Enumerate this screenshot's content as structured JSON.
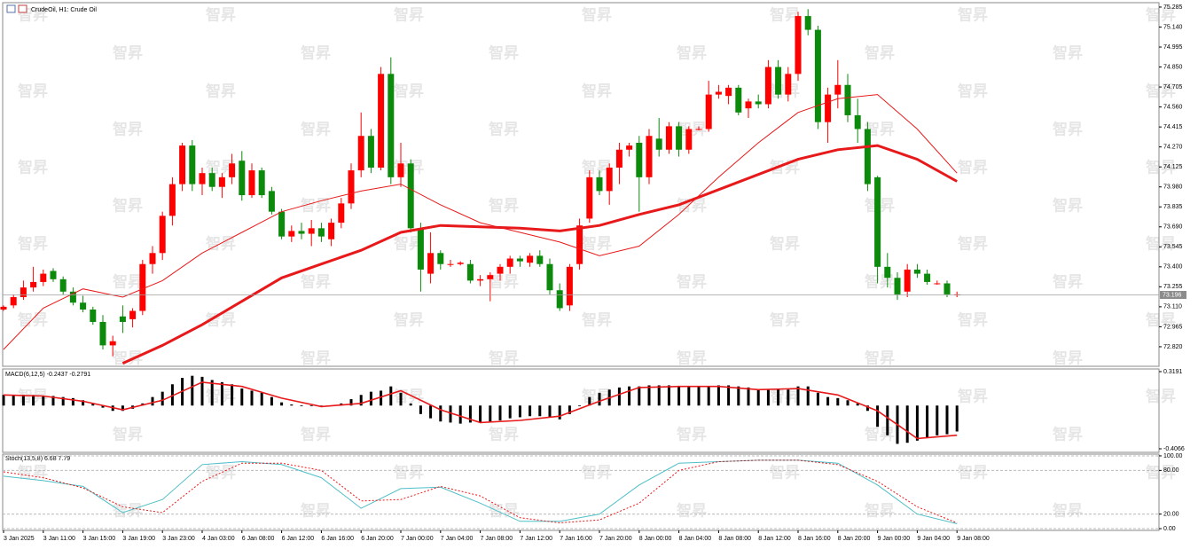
{
  "watermark": "智昇",
  "chart_data": [
    {
      "type": "candlestick",
      "title": "CrudeOil, H1: Crude Oil",
      "up_color": "#ff0000",
      "down_color": "#0b8a0b",
      "xlim": [
        0,
        116
      ],
      "ylim": [
        72.678,
        75.317
      ],
      "yticks": [
        75.285,
        {
          "value": 75.14,
          "label": "75.140"
        },
        74.995,
        {
          "value": 74.85,
          "label": "74.850"
        },
        74.705,
        {
          "value": 74.56,
          "label": "74.560"
        },
        74.415,
        {
          "value": 74.27,
          "label": "74.270"
        },
        74.125,
        {
          "value": 73.98,
          "label": "73.980"
        },
        73.835,
        {
          "value": 73.69,
          "label": "73.690"
        },
        73.545,
        {
          "value": 73.4,
          "label": "73.400"
        },
        73.255,
        {
          "value": 73.11,
          "label": "73.110"
        },
        72.965,
        {
          "value": 72.82,
          "label": "72.820"
        }
      ],
      "last_price": 73.196,
      "candles": [
        [
          73.09,
          73.12,
          73.08,
          73.11
        ],
        [
          73.12,
          73.2,
          73.1,
          73.18
        ],
        [
          73.18,
          73.3,
          73.16,
          73.25
        ],
        [
          73.25,
          73.4,
          73.22,
          73.29
        ],
        [
          73.29,
          73.38,
          73.26,
          73.35
        ],
        [
          73.37,
          73.39,
          73.29,
          73.31
        ],
        [
          73.31,
          73.33,
          73.2,
          73.22
        ],
        [
          73.22,
          73.25,
          73.12,
          73.14
        ],
        [
          73.14,
          73.19,
          73.07,
          73.09
        ],
        [
          73.09,
          73.11,
          72.98,
          73.0
        ],
        [
          73.0,
          73.05,
          72.8,
          72.83
        ],
        [
          72.83,
          72.9,
          72.75,
          72.86
        ],
        [
          73.04,
          73.12,
          72.92,
          73.0
        ],
        [
          73.02,
          73.1,
          72.96,
          73.08
        ],
        [
          73.08,
          73.45,
          73.05,
          73.42
        ],
        [
          73.42,
          73.55,
          73.35,
          73.5
        ],
        [
          73.5,
          73.8,
          73.45,
          73.77
        ],
        [
          73.77,
          74.05,
          73.7,
          74.0
        ],
        [
          74.0,
          74.3,
          73.95,
          74.28
        ],
        [
          74.28,
          74.32,
          73.95,
          74.0
        ],
        [
          74.0,
          74.12,
          73.92,
          74.08
        ],
        [
          74.08,
          74.12,
          73.95,
          73.98
        ],
        [
          73.98,
          74.08,
          73.9,
          74.05
        ],
        [
          74.05,
          74.22,
          74.0,
          74.15
        ],
        [
          74.17,
          74.24,
          73.88,
          73.92
        ],
        [
          73.92,
          74.15,
          73.9,
          74.1
        ],
        [
          74.1,
          74.12,
          73.9,
          73.92
        ],
        [
          73.95,
          73.98,
          73.78,
          73.8
        ],
        [
          73.8,
          73.82,
          73.6,
          73.62
        ],
        [
          73.62,
          73.7,
          73.58,
          73.66
        ],
        [
          73.66,
          73.72,
          73.6,
          73.64
        ],
        [
          73.64,
          73.74,
          73.55,
          73.68
        ],
        [
          73.68,
          73.72,
          73.58,
          73.62
        ],
        [
          73.6,
          73.75,
          73.55,
          73.72
        ],
        [
          73.72,
          73.9,
          73.68,
          73.86
        ],
        [
          73.86,
          74.15,
          73.82,
          74.1
        ],
        [
          74.1,
          74.52,
          74.05,
          74.35
        ],
        [
          74.35,
          74.4,
          74.08,
          74.12
        ],
        [
          74.12,
          74.85,
          74.1,
          74.8
        ],
        [
          74.8,
          74.92,
          74.0,
          74.05
        ],
        [
          74.05,
          74.3,
          73.98,
          74.15
        ],
        [
          74.15,
          74.18,
          73.65,
          73.68
        ],
        [
          73.68,
          73.72,
          73.22,
          73.38
        ],
        [
          73.35,
          73.65,
          73.28,
          73.5
        ],
        [
          73.5,
          73.52,
          73.38,
          73.42
        ],
        [
          73.42,
          73.45,
          73.4,
          73.42
        ],
        [
          73.42,
          73.44,
          73.41,
          73.43
        ],
        [
          73.42,
          73.45,
          73.28,
          73.3
        ],
        [
          73.3,
          73.34,
          73.26,
          73.31
        ],
        [
          73.31,
          73.36,
          73.15,
          73.34
        ],
        [
          73.35,
          73.42,
          73.3,
          73.4
        ],
        [
          73.4,
          73.48,
          73.35,
          73.46
        ],
        [
          73.46,
          73.48,
          73.4,
          73.44
        ],
        [
          73.43,
          73.5,
          73.4,
          73.48
        ],
        [
          73.48,
          73.52,
          73.4,
          73.42
        ],
        [
          73.42,
          73.46,
          73.2,
          73.23
        ],
        [
          73.23,
          73.28,
          73.08,
          73.1
        ],
        [
          73.12,
          73.42,
          73.08,
          73.4
        ],
        [
          73.42,
          73.75,
          73.38,
          73.7
        ],
        [
          73.75,
          74.1,
          73.72,
          74.05
        ],
        [
          74.05,
          74.1,
          73.92,
          73.95
        ],
        [
          73.95,
          74.15,
          73.85,
          74.12
        ],
        [
          74.12,
          74.3,
          74.0,
          74.25
        ],
        [
          74.25,
          74.3,
          74.2,
          74.28
        ],
        [
          74.3,
          74.35,
          73.8,
          74.05
        ],
        [
          74.05,
          74.4,
          74.0,
          74.35
        ],
        [
          74.33,
          74.48,
          74.2,
          74.25
        ],
        [
          74.25,
          74.45,
          74.22,
          74.42
        ],
        [
          74.42,
          74.45,
          74.2,
          74.25
        ],
        [
          74.25,
          74.42,
          74.22,
          74.4
        ],
        [
          74.4,
          74.42,
          74.39,
          74.4
        ],
        [
          74.4,
          74.75,
          74.38,
          74.65
        ],
        [
          74.65,
          74.72,
          74.62,
          74.67
        ],
        [
          74.64,
          74.72,
          74.58,
          74.7
        ],
        [
          74.7,
          74.72,
          74.5,
          74.52
        ],
        [
          74.55,
          74.62,
          74.48,
          74.6
        ],
        [
          74.6,
          74.65,
          74.55,
          74.58
        ],
        [
          74.58,
          74.9,
          74.55,
          74.85
        ],
        [
          74.85,
          74.9,
          74.62,
          74.65
        ],
        [
          74.65,
          74.85,
          74.6,
          74.8
        ],
        [
          74.8,
          75.25,
          74.75,
          75.22
        ],
        [
          75.22,
          75.27,
          75.08,
          75.12
        ],
        [
          75.12,
          75.15,
          74.4,
          74.45
        ],
        [
          74.45,
          74.7,
          74.3,
          74.65
        ],
        [
          74.65,
          74.9,
          74.55,
          74.72
        ],
        [
          74.72,
          74.8,
          74.45,
          74.5
        ],
        [
          74.5,
          74.62,
          74.3,
          74.4
        ],
        [
          74.4,
          74.45,
          73.95,
          74.0
        ],
        [
          74.05,
          74.06,
          73.28,
          73.4
        ],
        [
          73.4,
          73.5,
          73.25,
          73.32
        ],
        [
          73.32,
          73.36,
          73.16,
          73.2
        ],
        [
          73.22,
          73.42,
          73.18,
          73.38
        ],
        [
          73.38,
          73.42,
          73.32,
          73.35
        ],
        [
          73.35,
          73.38,
          73.27,
          73.29
        ],
        [
          73.28,
          73.3,
          73.27,
          73.28
        ],
        [
          73.28,
          73.3,
          73.18,
          73.2
        ],
        [
          73.2,
          73.22,
          73.18,
          73.2
        ]
      ],
      "series": [
        {
          "color": "#e8191a",
          "width": 1,
          "x": [
            0,
            4,
            8,
            12,
            16,
            20,
            24,
            28,
            32,
            36,
            40,
            44,
            48,
            52,
            56,
            60,
            64,
            68,
            72,
            76,
            80,
            84,
            88,
            92,
            96
          ],
          "values": [
            72.8,
            73.1,
            73.24,
            73.18,
            73.3,
            73.5,
            73.65,
            73.8,
            73.88,
            73.95,
            74.0,
            73.85,
            73.72,
            73.65,
            73.58,
            73.48,
            73.55,
            73.78,
            74.05,
            74.3,
            74.52,
            74.62,
            74.65,
            74.4,
            74.08
          ]
        },
        {
          "color": "#e8191a",
          "width": 3,
          "x": [
            12,
            16,
            20,
            24,
            28,
            32,
            36,
            40,
            44,
            48,
            52,
            56,
            60,
            64,
            68,
            72,
            76,
            80,
            84,
            88,
            92,
            96
          ],
          "values": [
            72.7,
            72.83,
            72.98,
            73.15,
            73.32,
            73.42,
            73.52,
            73.65,
            73.7,
            73.69,
            73.68,
            73.66,
            73.7,
            73.78,
            73.85,
            73.96,
            74.07,
            74.18,
            74.25,
            74.28,
            74.18,
            74.02
          ]
        }
      ]
    },
    {
      "type": "bar",
      "title": "MACD(6,12,5) -0.2437 -0.2791",
      "color": "#000000",
      "ylim": [
        -0.44,
        0.344
      ],
      "yticks": [
        0.3191,
        -0.4066
      ],
      "values": [
        0.1,
        0.1,
        0.1,
        0.1,
        0.09,
        0.09,
        0.08,
        0.07,
        0.05,
        0.02,
        -0.02,
        -0.05,
        -0.05,
        -0.03,
        0.02,
        0.08,
        0.13,
        0.2,
        0.26,
        0.28,
        0.27,
        0.24,
        0.22,
        0.2,
        0.16,
        0.14,
        0.12,
        0.08,
        0.03,
        0.01,
        0.0,
        0.0,
        -0.01,
        0.0,
        0.02,
        0.06,
        0.1,
        0.13,
        0.14,
        0.18,
        0.12,
        0.02,
        -0.08,
        -0.12,
        -0.15,
        -0.16,
        -0.17,
        -0.16,
        -0.16,
        -0.15,
        -0.14,
        -0.12,
        -0.11,
        -0.1,
        -0.1,
        -0.11,
        -0.13,
        -0.08,
        0.0,
        0.08,
        0.12,
        0.15,
        0.17,
        0.18,
        0.18,
        0.19,
        0.19,
        0.19,
        0.18,
        0.18,
        0.18,
        0.18,
        0.19,
        0.19,
        0.18,
        0.17,
        0.15,
        0.15,
        0.16,
        0.15,
        0.18,
        0.18,
        0.12,
        0.08,
        0.07,
        0.05,
        0.02,
        -0.05,
        -0.2,
        -0.28,
        -0.36,
        -0.35,
        -0.33,
        -0.3,
        -0.28,
        -0.27,
        -0.2437
      ],
      "series": [
        {
          "color": "#e8191a",
          "width": 1.6,
          "x": [
            0,
            4,
            8,
            12,
            16,
            20,
            24,
            28,
            32,
            36,
            40,
            44,
            48,
            52,
            56,
            60,
            64,
            68,
            72,
            76,
            80,
            84,
            88,
            92,
            96
          ],
          "values": [
            0.1,
            0.09,
            0.04,
            -0.04,
            0.05,
            0.22,
            0.18,
            0.07,
            -0.01,
            0.02,
            0.14,
            -0.04,
            -0.16,
            -0.14,
            -0.1,
            0.04,
            0.17,
            0.18,
            0.18,
            0.15,
            0.16,
            0.1,
            -0.05,
            -0.31,
            -0.2791
          ]
        }
      ]
    },
    {
      "type": "line",
      "title": "Stoch(13,5,8) 6.68 7.79",
      "grid": "dashed",
      "ylim": [
        -2.4,
        102.4
      ],
      "yticks": [
        {
          "value": 100,
          "label": "100.00"
        },
        {
          "value": 80,
          "label": "80.00"
        },
        {
          "value": 20,
          "label": "20.00"
        },
        {
          "value": 0,
          "label": "0.00"
        }
      ],
      "xticks": [
        {
          "value": 0,
          "label": "3 Jan 2025"
        },
        {
          "value": 4,
          "label": "3 Jan 11:00"
        },
        {
          "value": 8,
          "label": "3 Jan 15:00"
        },
        {
          "value": 12,
          "label": "3 Jan 19:00"
        },
        {
          "value": 16,
          "label": "3 Jan 23:00"
        },
        {
          "value": 20,
          "label": "4 Jan 03:00"
        },
        {
          "value": 24,
          "label": "6 Jan 08:00"
        },
        {
          "value": 28,
          "label": "6 Jan 12:00"
        },
        {
          "value": 32,
          "label": "6 Jan 16:00"
        },
        {
          "value": 36,
          "label": "6 Jan 20:00"
        },
        {
          "value": 40,
          "label": "7 Jan 00:00"
        },
        {
          "value": 44,
          "label": "7 Jan 04:00"
        },
        {
          "value": 48,
          "label": "7 Jan 08:00"
        },
        {
          "value": 52,
          "label": "7 Jan 12:00"
        },
        {
          "value": 56,
          "label": "7 Jan 16:00"
        },
        {
          "value": 60,
          "label": "7 Jan 20:00"
        },
        {
          "value": 64,
          "label": "8 Jan 00:00"
        },
        {
          "value": 68,
          "label": "8 Jan 04:00"
        },
        {
          "value": 72,
          "label": "8 Jan 08:00"
        },
        {
          "value": 76,
          "label": "8 Jan 12:00"
        },
        {
          "value": 80,
          "label": "8 Jan 16:00"
        },
        {
          "value": 84,
          "label": "8 Jan 20:00"
        },
        {
          "value": 88,
          "label": "9 Jan 00:00"
        },
        {
          "value": 92,
          "label": "9 Jan 04:00"
        },
        {
          "value": 96,
          "label": "9 Jan 08:00"
        }
      ],
      "series": [
        {
          "color": "#4fbfc8",
          "width": 1,
          "x": [
            0,
            4,
            8,
            12,
            16,
            20,
            24,
            28,
            32,
            36,
            40,
            44,
            48,
            52,
            56,
            60,
            64,
            68,
            72,
            76,
            80,
            84,
            88,
            92,
            96
          ],
          "values": [
            72,
            66,
            58,
            22,
            40,
            88,
            92,
            88,
            70,
            28,
            55,
            57,
            35,
            10,
            10,
            20,
            60,
            90,
            92,
            94,
            94,
            90,
            60,
            20,
            6.68
          ]
        },
        {
          "color": "#e8191a",
          "width": 1,
          "dash": true,
          "x": [
            0,
            4,
            8,
            12,
            16,
            20,
            24,
            28,
            32,
            36,
            40,
            44,
            48,
            52,
            56,
            60,
            64,
            68,
            72,
            76,
            80,
            84,
            88,
            92,
            96
          ],
          "values": [
            78,
            70,
            56,
            30,
            22,
            65,
            90,
            90,
            80,
            38,
            40,
            58,
            45,
            15,
            8,
            12,
            35,
            80,
            92,
            94,
            94,
            88,
            65,
            30,
            7.79
          ]
        }
      ]
    }
  ]
}
